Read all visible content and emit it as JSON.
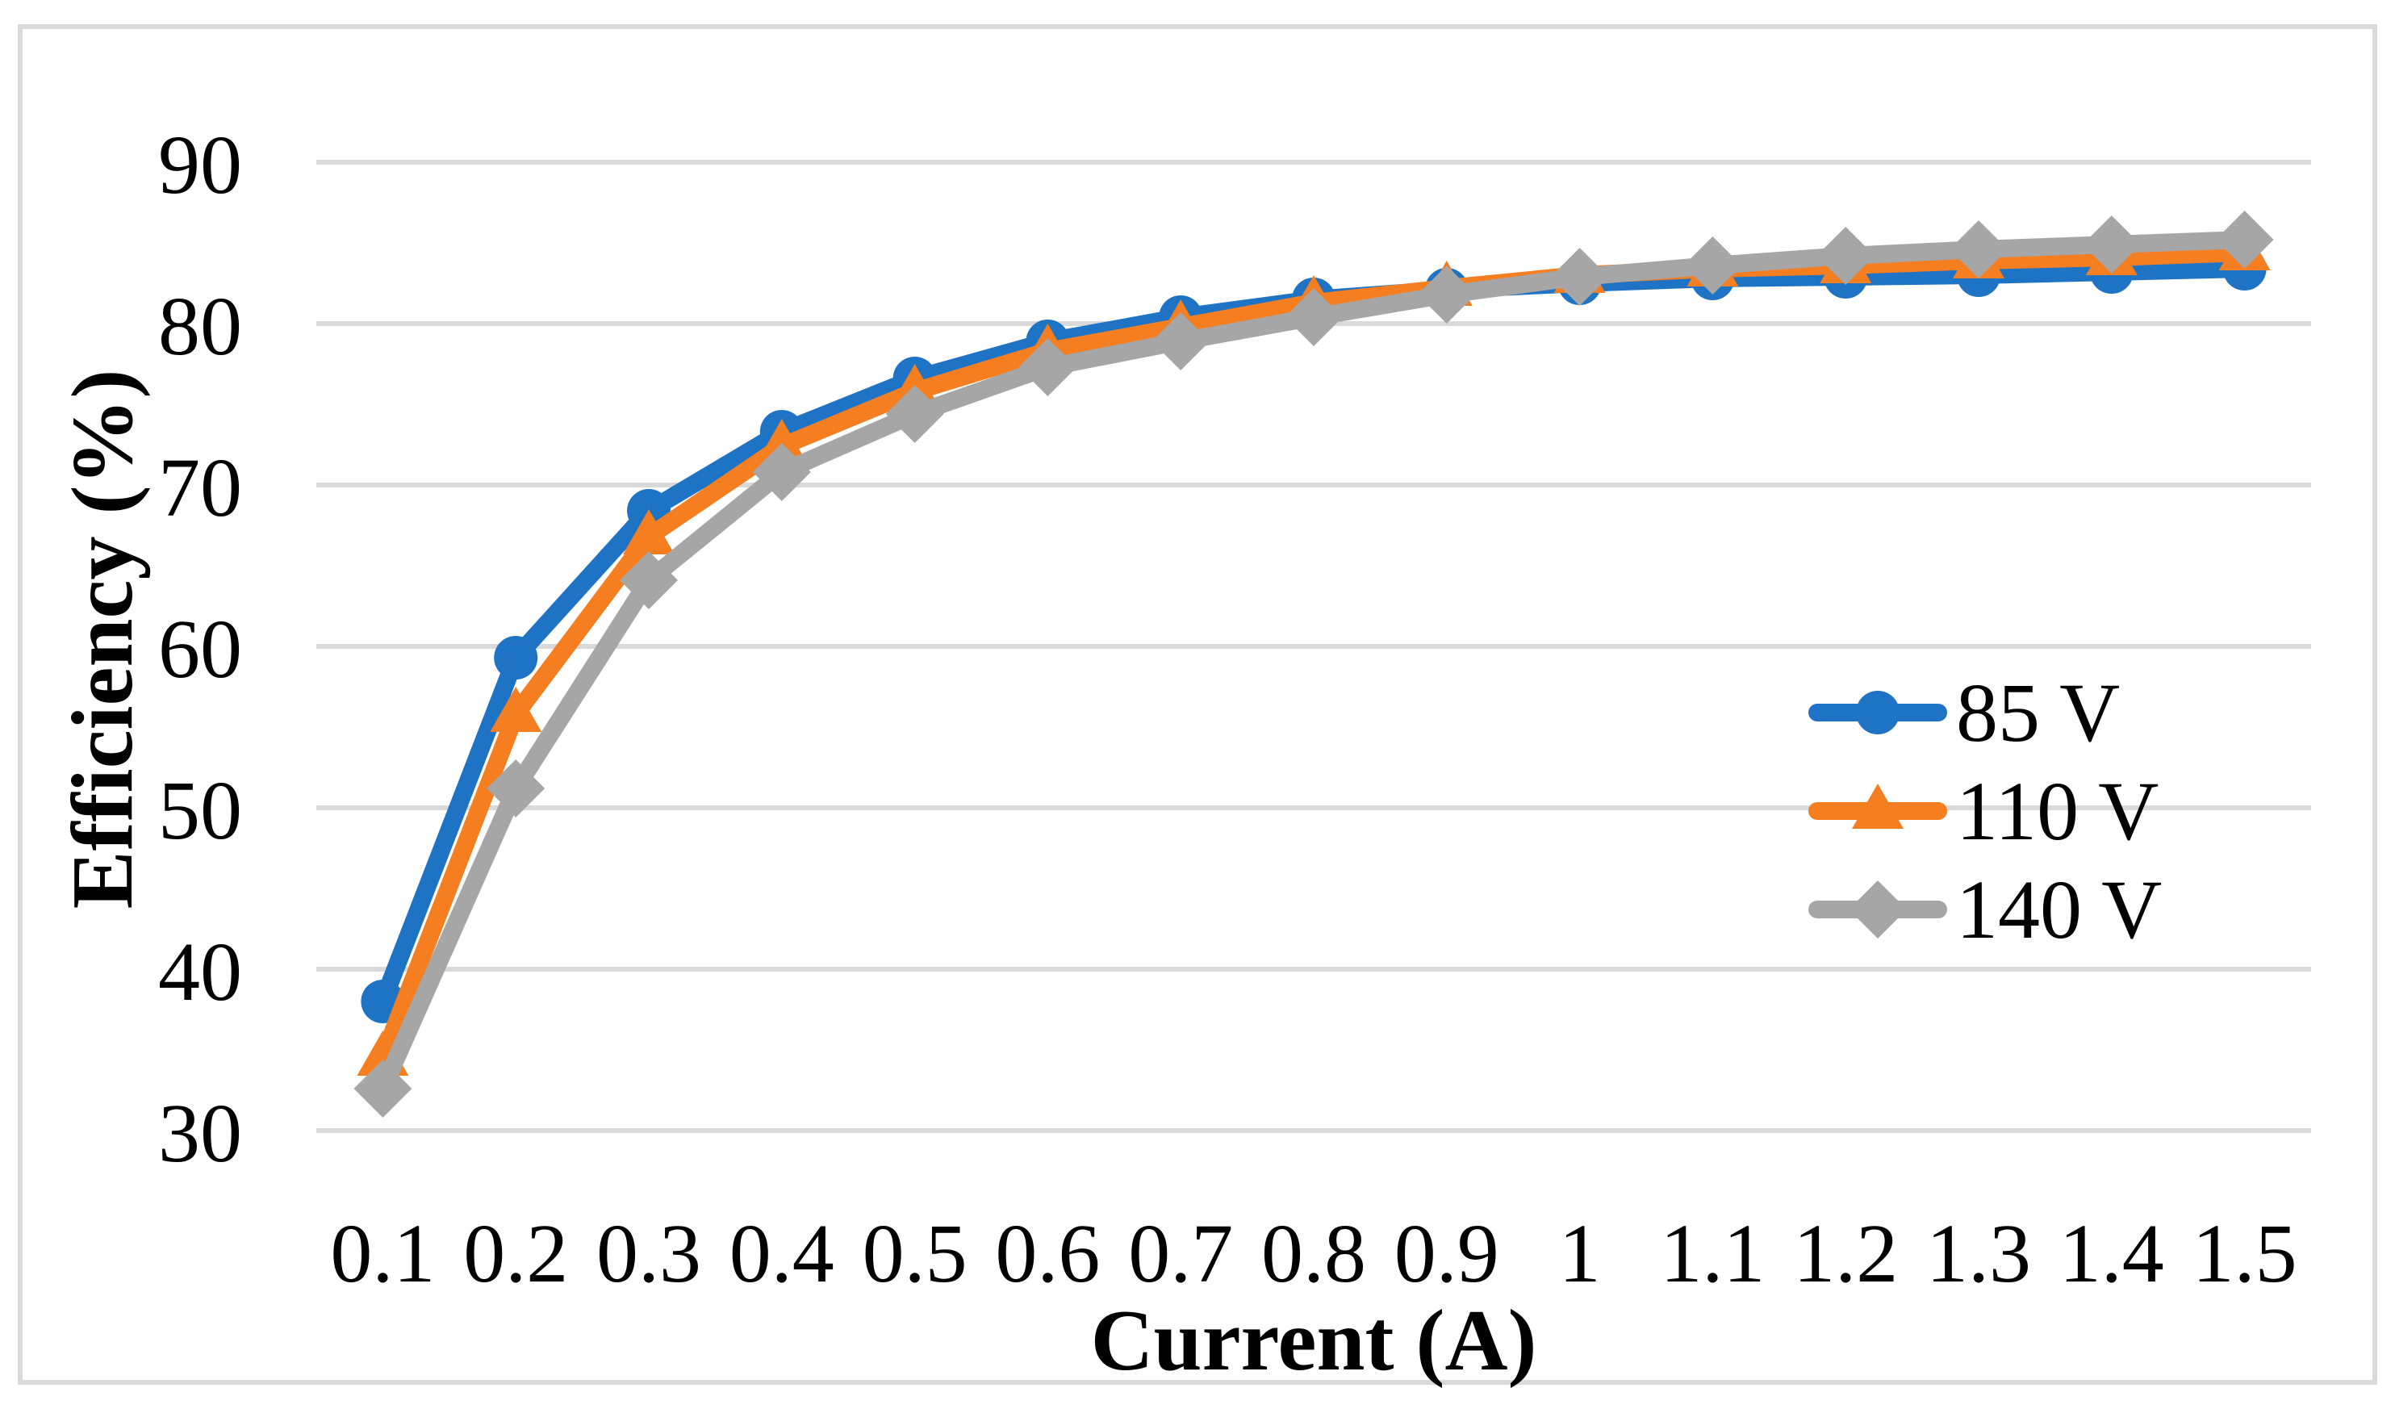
{
  "chart_data": {
    "type": "line",
    "title": "",
    "xlabel": "Current (A)",
    "ylabel": "Efficiency (%)",
    "x_categories": [
      "0.1",
      "0.2",
      "0.3",
      "0.4",
      "0.5",
      "0.6",
      "0.7",
      "0.8",
      "0.9",
      "1",
      "1.1",
      "1.2",
      "1.3",
      "1.4",
      "1.5"
    ],
    "y_ticks": [
      30,
      40,
      50,
      60,
      70,
      80,
      90
    ],
    "ylim": [
      30,
      90
    ],
    "grid": "horizontal-only",
    "gridline_color": "#D9D9D9",
    "frame_color": "#D9D9D9",
    "background_color": "#FFFFFF",
    "text_color": "#000000",
    "legend_position": "middle-right",
    "series": [
      {
        "name": "85 V",
        "marker": "circle",
        "color": "#1E73C4",
        "values": [
          38.0,
          59.3,
          68.4,
          73.3,
          76.6,
          78.9,
          80.4,
          81.5,
          82.1,
          82.5,
          82.8,
          82.9,
          83.0,
          83.2,
          83.4
        ]
      },
      {
        "name": "110 V",
        "marker": "triangle",
        "color": "#F57E20",
        "values": [
          34.5,
          55.8,
          66.8,
          72.4,
          75.8,
          78.3,
          79.8,
          81.3,
          82.2,
          83.0,
          83.4,
          83.6,
          83.9,
          84.1,
          84.4
        ]
      },
      {
        "name": "140 V",
        "marker": "diamond",
        "color": "#A6A6A6",
        "values": [
          32.6,
          51.2,
          64.1,
          70.8,
          74.4,
          77.3,
          78.9,
          80.4,
          81.8,
          82.9,
          83.6,
          84.2,
          84.6,
          84.9,
          85.2
        ]
      }
    ]
  }
}
